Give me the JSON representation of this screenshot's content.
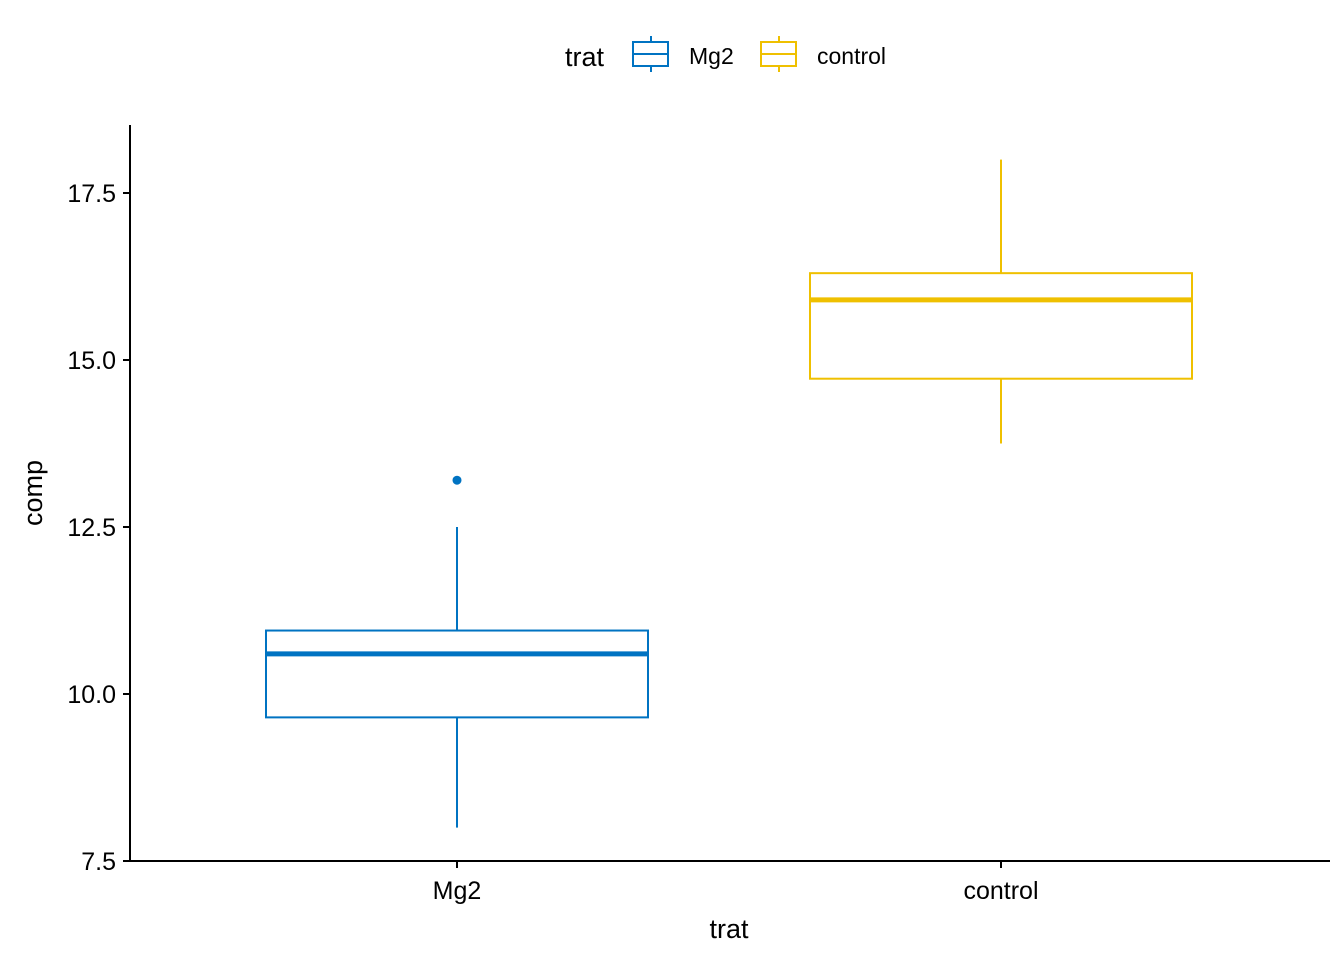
{
  "chart_data": {
    "type": "boxplot",
    "xlabel": "trat",
    "ylabel": "comp",
    "ylim": [
      7.5,
      18.5
    ],
    "yticks": [
      7.5,
      10.0,
      12.5,
      15.0,
      17.5
    ],
    "ytick_labels": [
      "7.5",
      "10.0",
      "12.5",
      "15.0",
      "17.5"
    ],
    "categories": [
      "Mg2",
      "control"
    ],
    "legend": {
      "title": "trat",
      "position": "top",
      "entries": [
        "Mg2",
        "control"
      ]
    },
    "colors": {
      "Mg2": "#0073C2",
      "control": "#EFC000"
    },
    "boxes": [
      {
        "name": "Mg2",
        "min": 8.0,
        "q1": 9.65,
        "median": 10.6,
        "q3": 10.95,
        "max": 12.5,
        "outliers": [
          13.2
        ]
      },
      {
        "name": "control",
        "min": 13.75,
        "q1": 14.72,
        "median": 15.9,
        "q3": 16.3,
        "max": 18.0,
        "outliers": []
      }
    ],
    "grid": false
  }
}
